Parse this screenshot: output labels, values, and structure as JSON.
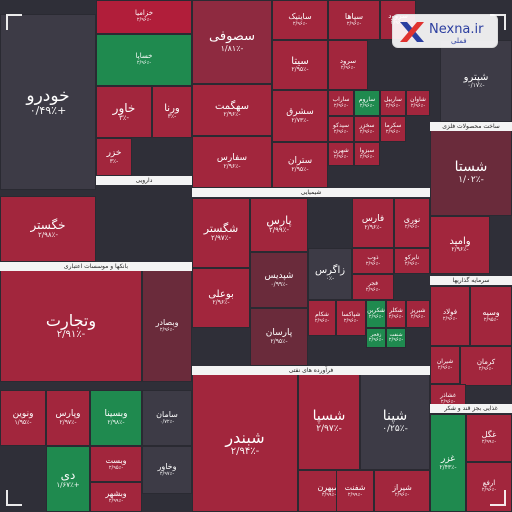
{
  "logo": {
    "brand": "Nexna.ir",
    "sub": "فملی"
  },
  "colors": {
    "deep_red": "#b11e3a",
    "red": "#a2263d",
    "mid_red": "#8e2a40",
    "dark_red": "#6a2b3b",
    "neutral": "#3d3b46",
    "green": "#1f8a4f",
    "light_green": "#27a05e"
  },
  "chart_data": {
    "type": "heatmap",
    "title": "",
    "sectors": [
      {
        "name": "بانکها و موسسات اعتباری"
      },
      {
        "name": "شیمیایی"
      },
      {
        "name": "فرآورده های نفتی"
      },
      {
        "name": "سرمایه گذاریها"
      },
      {
        "name": "ساخت محصولات فلزی"
      },
      {
        "name": "غذایی بجز قند و شکر"
      },
      {
        "name": "دارویی"
      }
    ],
    "tiles": [
      {
        "name": "خودرو",
        "change": "+۰/۴۹٪",
        "color": "neutral"
      },
      {
        "name": "خزامیا",
        "change": "-۲/۹۶٪",
        "color": "deep_red"
      },
      {
        "name": "خساپا",
        "change": "-۲/۹۶٪",
        "color": "green"
      },
      {
        "name": "خاور",
        "change": "-۳٪",
        "color": "red"
      },
      {
        "name": "ورنا",
        "change": "-۳٪",
        "color": "red"
      },
      {
        "name": "خزر",
        "change": "-۳٪",
        "color": "red"
      },
      {
        "name": "خگستر",
        "change": "-۲/۹۸٪",
        "color": "red"
      },
      {
        "name": "سصوفی",
        "change": "-۱/۸۱٪",
        "color": "mid_red"
      },
      {
        "name": "سهگمت",
        "change": "-۲/۹۶٪",
        "color": "red"
      },
      {
        "name": "سفارس",
        "change": "-۲/۹۶٪",
        "color": "red"
      },
      {
        "name": "ساینیک",
        "change": "-۲/۹۶٪",
        "color": "red"
      },
      {
        "name": "سپاها",
        "change": "-۲/۹۶٪",
        "color": "red"
      },
      {
        "name": "سروود",
        "change": "-۲/۹۶٪",
        "color": "red"
      },
      {
        "name": "سیتا",
        "change": "-۲/۹۵٪",
        "color": "red"
      },
      {
        "name": "سشرق",
        "change": "-۲/۷۳٪",
        "color": "red"
      },
      {
        "name": "ستران",
        "change": "-۲/۹۵٪",
        "color": "red"
      },
      {
        "name": "شستا",
        "change": "-۱/۰۲٪",
        "color": "dark_red"
      },
      {
        "name": "وامید",
        "change": "-۲/۹۶٪",
        "color": "red"
      },
      {
        "name": "وتجارت",
        "change": "-۲/۹۱٪",
        "color": "red"
      },
      {
        "name": "وبصادر",
        "change": "-۲/۹۶٪",
        "color": "dark_red"
      },
      {
        "name": "شگستر",
        "change": "-۲/۹۷٪",
        "color": "red"
      },
      {
        "name": "پارس",
        "change": "-۲/۹۹٪",
        "color": "red"
      },
      {
        "name": "شپدیس",
        "change": "-۰/۹۹٪",
        "color": "dark_red"
      },
      {
        "name": "بوعلی",
        "change": "-۲/۹۶٪",
        "color": "red"
      },
      {
        "name": "پارسان",
        "change": "-۲/۹۵٪",
        "color": "dark_red"
      },
      {
        "name": "زاگرس",
        "change": "-۰٪",
        "color": "neutral"
      },
      {
        "name": "فارس",
        "change": "-۲/۹۶٪",
        "color": "red"
      },
      {
        "name": "نوری",
        "change": "-۲/۹۶٪",
        "color": "red"
      },
      {
        "name": "شبندر",
        "change": "-۲/۹۴٪",
        "color": "red"
      },
      {
        "name": "شسپا",
        "change": "-۲/۹۷٪",
        "color": "red"
      },
      {
        "name": "شپنا",
        "change": "-۰/۲۵٪",
        "color": "neutral"
      },
      {
        "name": "شپهرن",
        "change": "-۲/۹۹٪",
        "color": "red"
      },
      {
        "name": "شفنت",
        "change": "-۲/۹۹٪",
        "color": "red"
      },
      {
        "name": "شیراز",
        "change": "-۲/۹۶٪",
        "color": "red"
      },
      {
        "name": "ونوین",
        "change": "-۱/۹۵٪",
        "color": "red"
      },
      {
        "name": "وپارس",
        "change": "-۲/۹۷٪",
        "color": "red"
      },
      {
        "name": "وبسینا",
        "change": "-۲/۹۸٪",
        "color": "green"
      },
      {
        "name": "سامان",
        "change": "-۰/۷۲٪",
        "color": "neutral"
      },
      {
        "name": "وبست",
        "change": "-۲/۹۵٪",
        "color": "red"
      },
      {
        "name": "وخاور",
        "change": "-۲/۹۷٪",
        "color": "neutral"
      },
      {
        "name": "دی",
        "change": "+۱/۶۷٪",
        "color": "green"
      },
      {
        "name": "وبشهر",
        "change": "-۲/۹۹٪",
        "color": "red"
      },
      {
        "name": "وسپه",
        "change": "-۲/۹۵٪",
        "color": "red"
      },
      {
        "name": "غزر",
        "change": "-۲/۴۳٪",
        "color": "green"
      },
      {
        "name": "غگل",
        "change": "-۲/۹۹٪",
        "color": "red"
      },
      {
        "name": "شپترو",
        "change": "-۰/۱۷٪",
        "color": "neutral"
      },
      {
        "name": "ارفع",
        "change": "-۲/۹۶٪",
        "color": "red"
      },
      {
        "name": "فولاد",
        "change": "-۲/۹۶٪",
        "color": "red"
      },
      {
        "name": "شیران",
        "change": "-۲/۹۶٪",
        "color": "red"
      },
      {
        "name": "کرمان",
        "change": "-۲/۹۶٪",
        "color": "red"
      },
      {
        "name": "شکربن",
        "change": "-۲/۹۶٪",
        "color": "green"
      },
      {
        "name": "شکلر",
        "change": "-۲/۹۶٪",
        "color": "red"
      },
      {
        "name": "شبریز",
        "change": "-۲/۹۶٪",
        "color": "red"
      },
      {
        "name": "غشاذر",
        "change": "-۲/۹۶٪",
        "color": "red"
      },
      {
        "name": "سرود",
        "change": "-۲/۹۶٪",
        "color": "red"
      },
      {
        "name": "ساروم",
        "change": "-۲/۹۶٪",
        "color": "green"
      },
      {
        "name": "ساراب",
        "change": "-۲/۹۶٪",
        "color": "red"
      },
      {
        "name": "سیدکو",
        "change": "-۲/۹۶٪",
        "color": "red"
      },
      {
        "name": "سخزر",
        "change": "-۲/۹۶٪",
        "color": "red"
      },
      {
        "name": "ساربیل",
        "change": "-۲/۹۶٪",
        "color": "red"
      },
      {
        "name": "سکرما",
        "change": "-۲/۹۶٪",
        "color": "red"
      },
      {
        "name": "سبزوا",
        "change": "-۲/۹۶٪",
        "color": "red"
      },
      {
        "name": "شهرن",
        "change": "-۲/۹۶٪",
        "color": "red"
      },
      {
        "name": "شاوان",
        "change": "-۲/۹۶٪",
        "color": "red"
      },
      {
        "name": "نایرکو",
        "change": "-۲/۹۶٪",
        "color": "red"
      },
      {
        "name": "زفجر",
        "change": "-۲/۹۶٪",
        "color": "green"
      },
      {
        "name": "شنفت",
        "change": "-۲/۹۶٪",
        "color": "green"
      },
      {
        "name": "ذوب",
        "change": "-۲/۹۶٪",
        "color": "red"
      },
      {
        "name": "فجر",
        "change": "-۲/۹۶٪",
        "color": "red"
      },
      {
        "name": "شکام",
        "change": "-۲/۹۶٪",
        "color": "red"
      },
      {
        "name": "شپاکسا",
        "change": "-۲/۹۶٪",
        "color": "red"
      }
    ]
  }
}
